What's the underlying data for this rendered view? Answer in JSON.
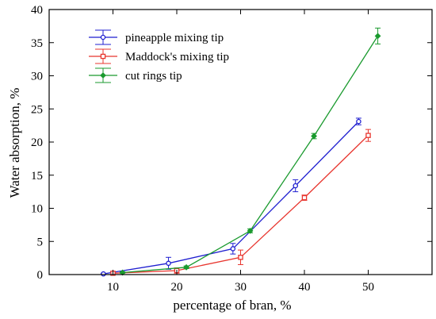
{
  "chart_data": {
    "type": "line",
    "title": "",
    "xlabel": "percentage of bran, %",
    "ylabel": "Water absorption, %",
    "xlim": [
      0,
      60
    ],
    "ylim": [
      0,
      40
    ],
    "xticks": [
      10,
      20,
      30,
      40,
      50
    ],
    "yticks": [
      0,
      5,
      10,
      15,
      20,
      25,
      30,
      35,
      40
    ],
    "grid": false,
    "legend_position": "top-left",
    "series": [
      {
        "name": "pineapple mixing tip",
        "color": "#1f1fd0",
        "marker": "circle",
        "x": [
          8.5,
          18.7,
          28.8,
          38.6,
          48.5
        ],
        "y": [
          0.1,
          1.7,
          3.9,
          13.4,
          23.1
        ],
        "err": [
          0.1,
          0.9,
          0.8,
          0.9,
          0.5
        ]
      },
      {
        "name": "Maddock's mixing tip",
        "color": "#e8352e",
        "marker": "square",
        "x": [
          10,
          20,
          30,
          40,
          50
        ],
        "y": [
          0.2,
          0.6,
          2.6,
          11.6,
          21.0
        ],
        "err": [
          0.2,
          0.4,
          1.1,
          0.4,
          0.9
        ]
      },
      {
        "name": "cut rings tip",
        "color": "#1a9a2e",
        "marker": "diamond",
        "x": [
          11.5,
          21.5,
          31.5,
          41.5,
          51.5
        ],
        "y": [
          0.3,
          1.1,
          6.6,
          20.9,
          36.0
        ],
        "err": [
          0.1,
          0.2,
          0.3,
          0.4,
          1.2
        ]
      }
    ]
  }
}
